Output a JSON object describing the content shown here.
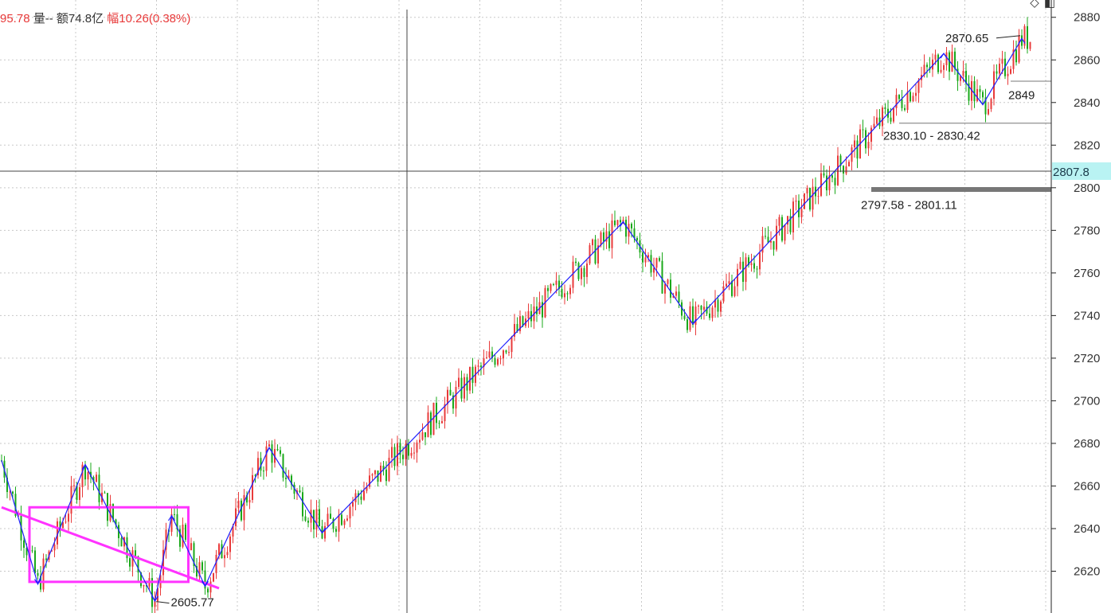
{
  "header": {
    "price_fragment": "95.78",
    "volume_label": "量--",
    "amount_label": "额74.8亿",
    "change_prefix": "幅",
    "change_value": "10.26(0.38%)"
  },
  "icons": [
    "diamond-icon",
    "panel-icon"
  ],
  "colors": {
    "up": "#e83a3a",
    "down": "#1aa81a",
    "wave": "#1f1fff",
    "trend": "#ff33ff",
    "axis": "#222222",
    "grid": "#c8c8c8",
    "current_price_bg": "#b9f3f3"
  },
  "chart_data": {
    "type": "candlestick",
    "title": "",
    "xlabel": "",
    "ylabel": "",
    "ylim": [
      2603,
      2887
    ],
    "y_ticks": [
      2620,
      2640,
      2660,
      2680,
      2700,
      2720,
      2740,
      2760,
      2780,
      2800,
      2820,
      2840,
      2860,
      2880
    ],
    "grid": true,
    "crosshair": {
      "price": 2807.8,
      "label": "2807.8"
    },
    "wave_points": [
      {
        "bar": 0,
        "price": 2672
      },
      {
        "bar": 13,
        "price": 2614
      },
      {
        "bar": 30,
        "price": 2670
      },
      {
        "bar": 55,
        "price": 2606
      },
      {
        "bar": 61,
        "price": 2646
      },
      {
        "bar": 73,
        "price": 2613
      },
      {
        "bar": 96,
        "price": 2678
      },
      {
        "bar": 115,
        "price": 2638
      },
      {
        "bar": 223,
        "price": 2784
      },
      {
        "bar": 248,
        "price": 2736
      },
      {
        "bar": 338,
        "price": 2863
      },
      {
        "bar": 352,
        "price": 2839
      },
      {
        "bar": 366,
        "price": 2870
      }
    ],
    "trendline": [
      {
        "bar": 0,
        "price": 2650
      },
      {
        "bar": 78,
        "price": 2612
      }
    ],
    "box": {
      "bar_from": 10,
      "bar_to": 67,
      "price_from": 2615,
      "price_to": 2650
    },
    "annotations": [
      {
        "text": "2605.77",
        "bar": 55,
        "price": 2605.77
      },
      {
        "text": "2870.65",
        "bar": 366,
        "price": 2870.65
      },
      {
        "text": "2830.10 - 2830.42",
        "bar": 318,
        "price": 2830.1
      },
      {
        "text": "2797.58 - 2801.11",
        "bar": 310,
        "price": 2799
      },
      {
        "text": "2849",
        "bar": 360,
        "price": 2849
      }
    ],
    "bar_count": 370
  }
}
